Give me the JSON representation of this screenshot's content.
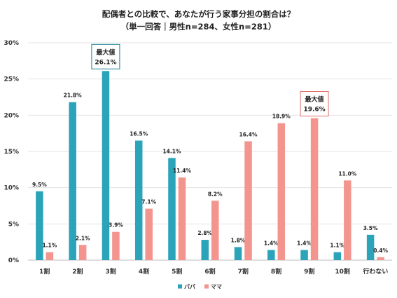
{
  "chart_data": {
    "type": "bar",
    "title": "配偶者との比較で、あなたが行う家事分担の割合は？",
    "subtitle": "（単一回答｜男性n=284、女性n=281）",
    "categories": [
      "1割",
      "2割",
      "3割",
      "4割",
      "5割",
      "6割",
      "7割",
      "8割",
      "9割",
      "10割",
      "行わない"
    ],
    "series": [
      {
        "name": "パパ",
        "color": "#2BA3B8",
        "values": [
          9.5,
          21.8,
          26.1,
          16.5,
          14.1,
          2.8,
          1.8,
          1.4,
          1.4,
          1.1,
          3.5
        ]
      },
      {
        "name": "ママ",
        "color": "#F4948E",
        "values": [
          1.1,
          2.1,
          3.9,
          7.1,
          11.4,
          8.2,
          16.4,
          18.9,
          19.6,
          11.0,
          0.4
        ]
      }
    ],
    "ylim": [
      0,
      30
    ],
    "yticks": [
      "0%",
      "5%",
      "10%",
      "15%",
      "20%",
      "25%",
      "30%"
    ],
    "ytick_values": [
      0,
      5,
      10,
      15,
      20,
      25,
      30
    ],
    "grid": true,
    "legend": "bottom-center",
    "annotations": [
      {
        "series": 0,
        "category": 2,
        "label": "最大値",
        "value_text": "26.1%",
        "border_color": "#1E7F90"
      },
      {
        "series": 1,
        "category": 8,
        "label": "最大値",
        "value_text": "19.6%",
        "border_color": "#E07068"
      }
    ]
  }
}
